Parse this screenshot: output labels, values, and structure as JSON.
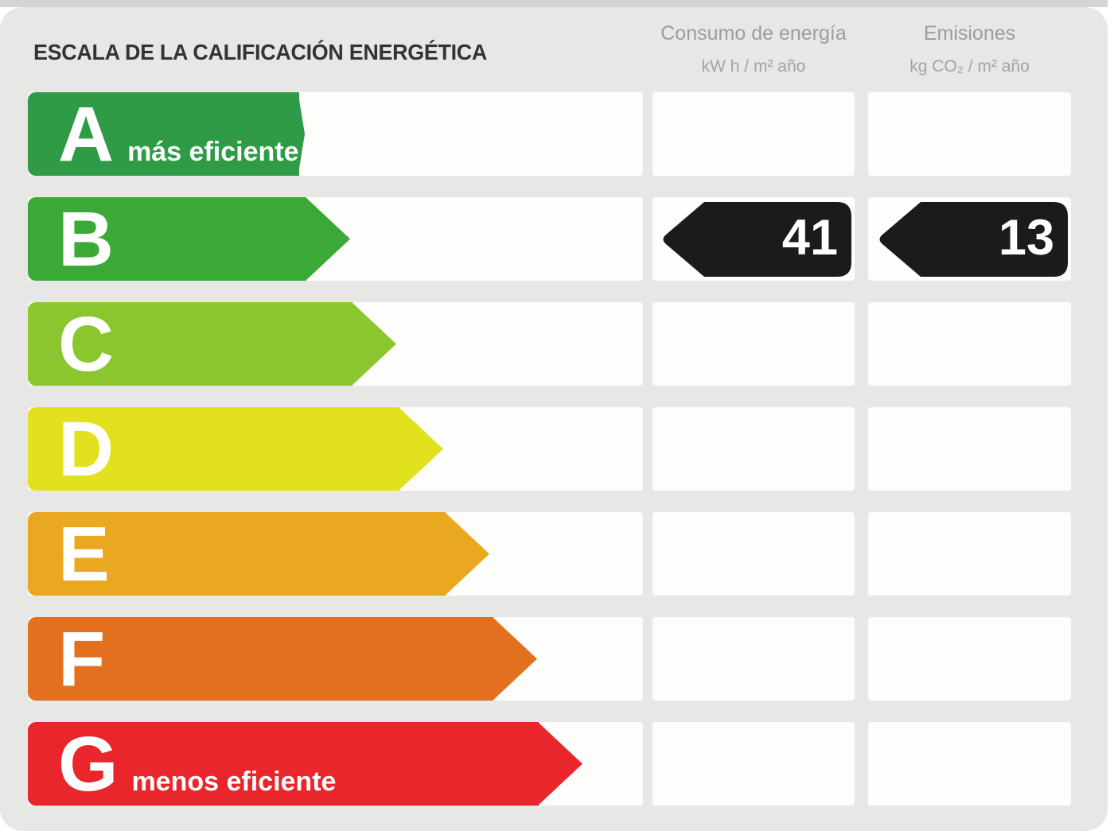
{
  "title": "ESCALA DE LA CALIFICACIÓN ENERGÉTICA",
  "columns": [
    {
      "title": "Consumo de energía",
      "unit": "kW h / m² año"
    },
    {
      "title": "Emisiones",
      "unit": "kg CO₂ / m² año"
    }
  ],
  "scale": {
    "rows": [
      {
        "grade": "A",
        "note": "más eficiente",
        "color": "#2f9b47",
        "arrow_width": 348
      },
      {
        "grade": "B",
        "color": "#3aa935",
        "arrow_width": 405
      },
      {
        "grade": "C",
        "color": "#8cc62f",
        "arrow_width": 463
      },
      {
        "grade": "D",
        "color": "#e1e11d",
        "arrow_width": 522
      },
      {
        "grade": "E",
        "color": "#eaa821",
        "arrow_width": 580
      },
      {
        "grade": "F",
        "color": "#e2701f",
        "arrow_width": 640
      },
      {
        "grade": "G",
        "note": "menos eficiente",
        "color": "#e8262b",
        "arrow_width": 697
      }
    ]
  },
  "rating": {
    "grade": "B",
    "consumption_value": "41",
    "emissions_value": "13",
    "badge_color": "#1b1b19"
  },
  "colors": {
    "panel_background": "#e7e7e5",
    "cell_background": "#fdfdfc",
    "title_text": "#333331",
    "header_text": "#9d9d9b",
    "grade_text": "#ffffff",
    "badge_text": "#ffffff"
  },
  "chart_data": {
    "type": "bar",
    "title": "ESCALA DE LA CALIFICACIÓN ENERGÉTICA",
    "orientation": "horizontal",
    "categories": [
      "A",
      "B",
      "C",
      "D",
      "E",
      "F",
      "G"
    ],
    "series": [
      {
        "name": "relative arrow length (px)",
        "values": [
          348,
          405,
          463,
          522,
          580,
          640,
          697
        ]
      }
    ],
    "category_colors": [
      "#2f9b47",
      "#3aa935",
      "#8cc62f",
      "#e1e11d",
      "#eaa821",
      "#e2701f",
      "#e8262b"
    ],
    "annotations": [
      {
        "category": "B",
        "column": "Consumo de energía",
        "value": 41,
        "unit": "kW h / m² año"
      },
      {
        "category": "B",
        "column": "Emisiones",
        "value": 13,
        "unit": "kg CO₂ / m² año"
      }
    ],
    "notes": {
      "A": "más eficiente",
      "G": "menos eficiente"
    },
    "legend_position": "none",
    "grid": false
  }
}
